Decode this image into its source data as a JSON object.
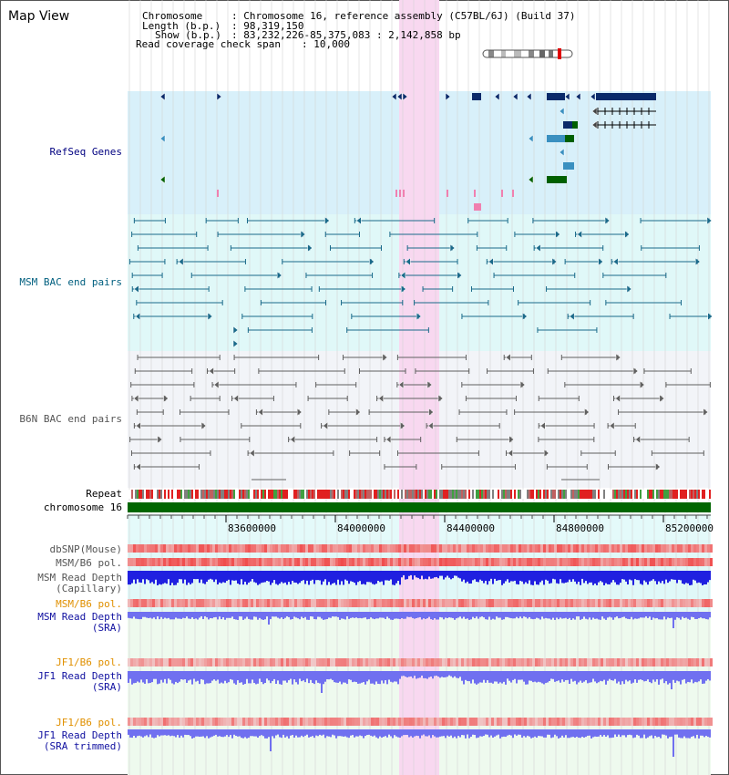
{
  "app_title": "Map View",
  "info": {
    "chromosome_label": "Chromosome",
    "chromosome_value": ": Chromosome 16, reference assembly (C57BL/6J) (Build 37)",
    "length_label": "Length (b.p.)",
    "length_value": ": 98,319,150",
    "show_label": "Show (b.p.)",
    "show_value": ": 83,232,226-85,375,083 : 2,142,858 bp",
    "span_label": "Read coverage check span",
    "span_value": ": 10,000"
  },
  "tracks": {
    "refseq": "RefSeq Genes",
    "msm_bac": "MSM BAC end pairs",
    "b6n_bac": "B6N BAC end pairs",
    "repeat": "Repeat",
    "chromosome": "chromosome 16",
    "dbsnp": "dbSNP(Mouse)",
    "msm_pol": "MSM/B6 pol.",
    "msm_depth_cap_1": "MSM Read Depth",
    "msm_depth_cap_2": "(Capillary)",
    "msm_pol_sra": "MSM/B6 pol.",
    "msm_depth_sra_1": "MSM Read Depth",
    "msm_depth_sra_2": "(SRA)",
    "jf1_pol_1": "JF1/B6 pol.",
    "jf1_depth_1": "JF1 Read Depth",
    "jf1_depth_1b": "(SRA)",
    "jf1_pol_2": "JF1/B6 pol.",
    "jf1_depth_2": "JF1 Read Depth",
    "jf1_depth_2b": "(SRA trimmed)"
  },
  "axis": {
    "ticks": [
      "83600000",
      "84000000",
      "84400000",
      "84800000",
      "85200000"
    ]
  },
  "colors": {
    "refseq_bg": "#d8f0fa",
    "msm_bg": "#e0f8f8",
    "b6n_bg": "#f2f4f8",
    "sra_bg": "#eefaee",
    "highlight": "#f8d8f0",
    "gene_dark": "#0a2a6a",
    "gene_mid": "#3a90c0",
    "gene_green": "#006000",
    "msm_line": "#1a6a8a",
    "b6n_line": "#606060",
    "chrom_green": "#006600",
    "depth_blue": "#2020e0",
    "depth_light": "#7070f0",
    "pol_red": "#f06060"
  }
}
